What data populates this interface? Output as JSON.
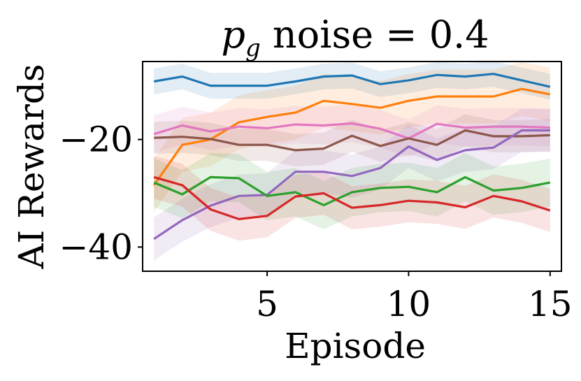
{
  "chart_data": {
    "type": "line",
    "title_main": "p",
    "title_sub": "g",
    "title_rest": " noise = 0.4",
    "xlabel": "Episode",
    "ylabel": "AI Rewards",
    "xlim": [
      0.6,
      15.4
    ],
    "ylim": [
      -44.5,
      -5.5
    ],
    "xticks": [
      5,
      10,
      15
    ],
    "xtick_labels": [
      "5",
      "10",
      "15"
    ],
    "yticks": [
      -20,
      -40
    ],
    "ytick_labels": [
      "−20",
      "−40"
    ],
    "grid": false,
    "x": [
      1,
      2,
      3,
      4,
      5,
      6,
      7,
      8,
      9,
      10,
      11,
      12,
      13,
      14,
      15
    ],
    "series": [
      {
        "name": "blue",
        "color": "#1f77b4",
        "band": 2.4,
        "values": [
          -9.2,
          -8.3,
          -10.0,
          -10.0,
          -10.0,
          -9.2,
          -8.3,
          -8.1,
          -9.7,
          -9.0,
          -8.0,
          -8.3,
          -7.8,
          -9.0,
          -10.2
        ]
      },
      {
        "name": "orange",
        "color": "#ff7f0e",
        "band": 5.0,
        "values": [
          -28.5,
          -21.0,
          -20.0,
          -16.8,
          -15.8,
          -15.0,
          -12.8,
          -13.4,
          -14.1,
          -12.8,
          -12.0,
          -12.0,
          -12.0,
          -10.6,
          -11.6
        ]
      },
      {
        "name": "pink",
        "color": "#e377c2",
        "band": 3.5,
        "values": [
          -19.0,
          -17.4,
          -18.5,
          -17.6,
          -17.9,
          -17.2,
          -17.4,
          -17.0,
          -18.0,
          -19.8,
          -17.1,
          -17.8,
          -17.6,
          -17.6,
          -17.8
        ]
      },
      {
        "name": "brown",
        "color": "#8c564b",
        "band": 3.0,
        "values": [
          -19.7,
          -19.5,
          -19.9,
          -21.0,
          -21.0,
          -22.0,
          -21.7,
          -19.3,
          -21.2,
          -19.8,
          -21.0,
          -18.3,
          -19.4,
          -19.4,
          -19.2
        ]
      },
      {
        "name": "purple",
        "color": "#9467bd",
        "band": 4.0,
        "values": [
          -38.5,
          -35.0,
          -32.3,
          -30.5,
          -30.3,
          -26.0,
          -26.0,
          -26.8,
          -25.3,
          -21.3,
          -23.8,
          -22.0,
          -21.5,
          -18.3,
          -18.3
        ]
      },
      {
        "name": "green",
        "color": "#2ca02c",
        "band": 4.5,
        "values": [
          -28.0,
          -30.2,
          -27.0,
          -27.2,
          -30.5,
          -29.8,
          -32.2,
          -29.8,
          -29.0,
          -28.8,
          -29.8,
          -27.0,
          -29.5,
          -29.0,
          -28.0
        ]
      },
      {
        "name": "red",
        "color": "#d62728",
        "band": 4.0,
        "values": [
          -27.0,
          -28.5,
          -33.0,
          -34.8,
          -34.2,
          -30.6,
          -30.0,
          -32.7,
          -32.2,
          -31.4,
          -31.7,
          -32.6,
          -30.5,
          -31.5,
          -33.2
        ]
      }
    ]
  }
}
